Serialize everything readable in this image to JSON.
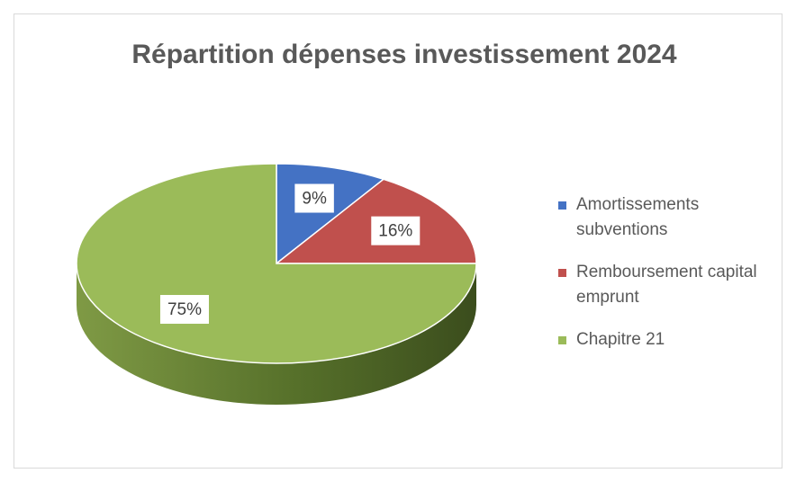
{
  "chart_data": {
    "type": "pie",
    "title": "Répartition dépenses investissement 2024",
    "categories": [
      "Amortissements subventions",
      "Remboursement capital emprunt",
      "Chapitre 21"
    ],
    "values": [
      9,
      16,
      75
    ],
    "value_labels": [
      "9%",
      "16%",
      "75%"
    ],
    "colors": [
      "#4472c4",
      "#c0504d",
      "#9bbb59"
    ],
    "legend": "right"
  }
}
